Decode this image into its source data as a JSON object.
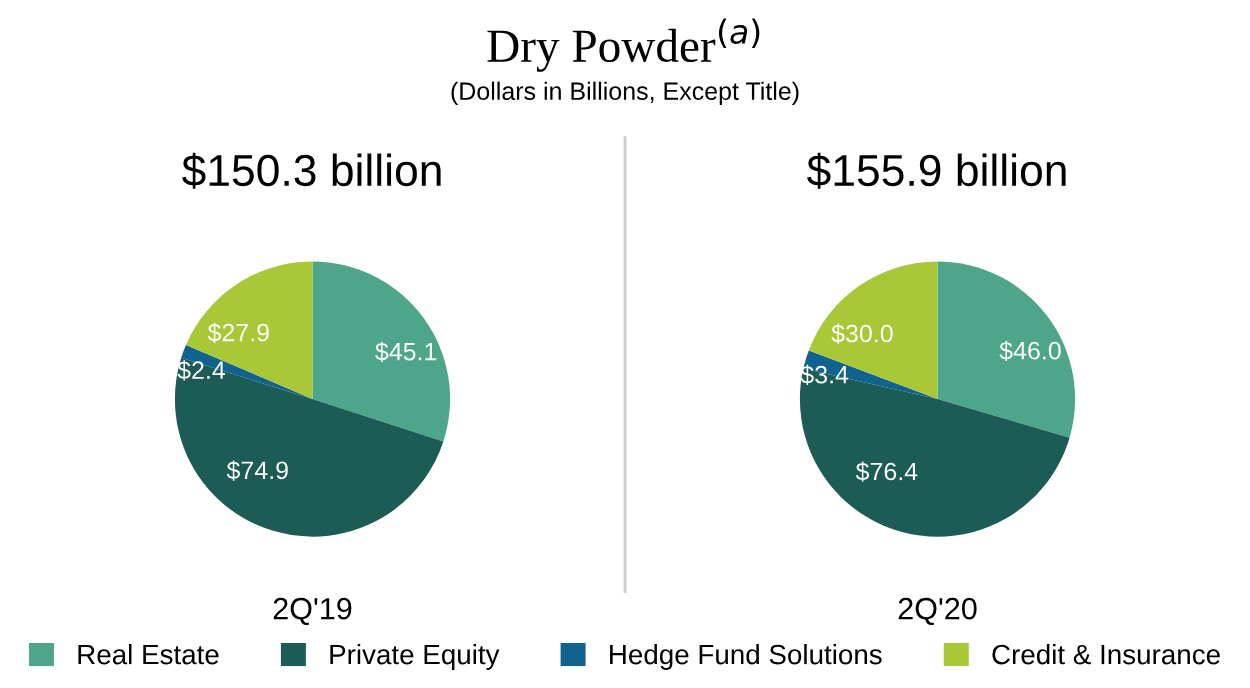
{
  "chart_data": [
    {
      "type": "pie",
      "title": "Dry Powder$^{(a)}$",
      "subtitle": "(Dollars in Billions, Except Title)",
      "annotations": [
        "$150.3 billion"
      ],
      "xlabel": "2Q'19",
      "categories": [
        "Real Estate",
        "Private Equity",
        "Hedge Fund Solutions",
        "Credit & Insurance"
      ],
      "values": [
        45.1,
        74.9,
        2.4,
        27.9
      ],
      "value_labels": [
        "$45.1",
        "$74.9",
        "$2.4",
        "$27.9"
      ],
      "colors": [
        "#4da68a",
        "#1d5c55",
        "#11638f",
        "#a8c838"
      ],
      "legend": "bottom"
    },
    {
      "type": "pie",
      "annotations": [
        "$155.9 billion"
      ],
      "xlabel": "2Q'20",
      "categories": [
        null,
        null,
        null,
        null
      ],
      "values": [
        46.0,
        76.4,
        3.4,
        30.0
      ],
      "value_labels": [
        "$46.0",
        "$76.4",
        "$3.4",
        "$30.0"
      ],
      "colors": [
        "#4da68a",
        "#1d5c55",
        "#11638f",
        "#a8c838"
      ]
    }
  ]
}
